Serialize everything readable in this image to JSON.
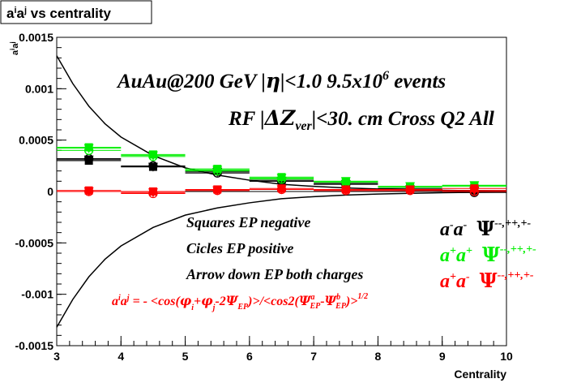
{
  "chart_data": {
    "type": "scatter",
    "title": "a^i a^j vs centrality",
    "title_parts": {
      "main": "a",
      "sup1": "i",
      "mid": "a",
      "sup2": "j",
      "rest": " vs centrality"
    },
    "xlabel": "Centrality",
    "ylabel": "a^i a^j",
    "xlim": [
      3,
      10
    ],
    "ylim": [
      -0.0015,
      0.0015
    ],
    "x_ticks": [
      "3",
      "4",
      "5",
      "6",
      "7",
      "8",
      "9",
      "10"
    ],
    "y_ticks": [
      {
        "value": 0.0015,
        "label": "0.0015"
      },
      {
        "value": 0.001,
        "label": "0.001"
      },
      {
        "value": 0.0005,
        "label": "0.0005"
      },
      {
        "value": 0,
        "label": "0"
      },
      {
        "value": -0.0005,
        "label": "-0.0005"
      },
      {
        "value": -0.001,
        "label": "-0.001"
      },
      {
        "value": -0.0015,
        "label": "-0.0015"
      }
    ],
    "x": [
      3.5,
      4.5,
      5.5,
      6.5,
      7.5,
      8.5,
      9.5
    ],
    "series": [
      {
        "name": "a-a- Squares EP negative",
        "color": "#000000",
        "marker": "square",
        "values": [
          0.0003,
          0.00024,
          0.0002,
          0.00011,
          8e-05,
          3e-05,
          1e-05
        ]
      },
      {
        "name": "a-a- Circles EP positive",
        "color": "#000000",
        "marker": "circle",
        "values": [
          0.00032,
          0.00025,
          0.00018,
          0.0001,
          7e-05,
          2e-05,
          -1e-05
        ]
      },
      {
        "name": "a-a- Arrow down EP both charges",
        "color": "#000000",
        "marker": "triangle-down",
        "values": [
          0.00031,
          0.00024,
          0.00019,
          0.0001,
          7e-05,
          2e-05,
          0.0
        ]
      },
      {
        "name": "a+a+ Squares EP negative",
        "color": "#00ee00",
        "marker": "square",
        "values": [
          0.00043,
          0.00036,
          0.00022,
          0.00014,
          0.0001,
          5e-05,
          6e-05
        ]
      },
      {
        "name": "a+a+ Circles EP positive",
        "color": "#00ee00",
        "marker": "circle",
        "values": [
          0.0004,
          0.00034,
          0.0002,
          0.00012,
          9e-05,
          4e-05,
          5e-05
        ]
      },
      {
        "name": "a+a+ Arrow down EP both charges",
        "color": "#00ee00",
        "marker": "triangle-down",
        "values": [
          0.00042,
          0.00035,
          0.00021,
          0.00013,
          0.0001,
          5e-05,
          6e-05
        ]
      },
      {
        "name": "a+a- Squares EP negative",
        "color": "#ff0000",
        "marker": "square",
        "values": [
          1e-05,
          0.0,
          2e-05,
          3e-05,
          2e-05,
          2e-05,
          3e-05
        ]
      },
      {
        "name": "a+a- Circles EP positive",
        "color": "#ff0000",
        "marker": "circle",
        "values": [
          0.0,
          -2e-05,
          1e-05,
          2e-05,
          1e-05,
          1e-05,
          0.0
        ]
      },
      {
        "name": "a+a- Arrow down EP both charges",
        "color": "#ff0000",
        "marker": "triangle-down",
        "values": [
          0.0,
          -1e-05,
          1e-05,
          2e-05,
          1e-05,
          1e-05,
          1e-05
        ]
      }
    ],
    "envelope_curve": {
      "x": [
        3.0,
        3.25,
        3.5,
        3.75,
        4.0,
        4.5,
        5.0,
        5.5,
        6.0,
        6.5,
        7.0,
        7.5,
        8.0,
        8.5,
        9.0,
        9.5,
        10.0
      ],
      "upper": [
        0.00132,
        0.00105,
        0.00083,
        0.00066,
        0.00053,
        0.00035,
        0.00023,
        0.00016,
        0.00011,
        7e-05,
        5e-05,
        3.5e-05,
        2.5e-05,
        1.8e-05,
        1.2e-05,
        8e-06,
        5e-06
      ],
      "lower": [
        -0.00132,
        -0.00105,
        -0.00083,
        -0.00066,
        -0.00053,
        -0.00035,
        -0.00023,
        -0.00016,
        -0.00011,
        -7e-05,
        -5e-05,
        -3.5e-05,
        -2.5e-05,
        -1.8e-05,
        -1.2e-05,
        -8e-06,
        -5e-06
      ]
    },
    "annotations": {
      "line1_a": "AuAu@200 GeV |",
      "line1_eta": "η",
      "line1_b": "|<1.0 9.5x10",
      "line1_sup": "6",
      "line1_c": " events",
      "line2_a": "RF |",
      "line2_delta": "ΔZ",
      "line2_sub": "ver",
      "line2_b": "|<30. cm Cross Q2 All",
      "squares": "Squares EP negative",
      "circles": "Cicles EP positive",
      "arrows": "Arrow down EP both charges",
      "formula_lhs": "a",
      "formula_sup_i": "i",
      "formula_a2": "a",
      "formula_sup_j": "j",
      "formula_rhs_a": " = - <cos(",
      "formula_phi_i": "φ",
      "formula_sub_i": "i",
      "formula_plus": "+",
      "formula_phi_j": "φ",
      "formula_sub_j": "j",
      "formula_rhs_b": "-2",
      "formula_psi1": "Ψ",
      "formula_sub_ep1": "EP",
      "formula_rhs_c": ")>/<cos2(",
      "formula_psi2": "Ψ",
      "formula_sup_a": "a",
      "formula_sub_ep2": "EP",
      "formula_dash": "-",
      "formula_psi3": "Ψ",
      "formula_sup_b": "b",
      "formula_sub_ep3": "EP",
      "formula_rhs_d": ")>",
      "formula_sup_half": "1/2"
    },
    "legend": [
      {
        "a1": "a",
        "s1": "-",
        "a2": "a",
        "s2": "-",
        "psi": "Ψ",
        "sup": "--,++,+-",
        "color": "#000000"
      },
      {
        "a1": "a",
        "s1": "+",
        "a2": "a",
        "s2": "+",
        "psi": "Ψ",
        "sup": "--,++,+-",
        "color": "#00ee00"
      },
      {
        "a1": "a",
        "s1": "+",
        "a2": "a",
        "s2": "-",
        "psi": "Ψ",
        "sup": "--,++,+-",
        "color": "#ff0000"
      }
    ],
    "legend_placement": "right",
    "grid": false
  }
}
